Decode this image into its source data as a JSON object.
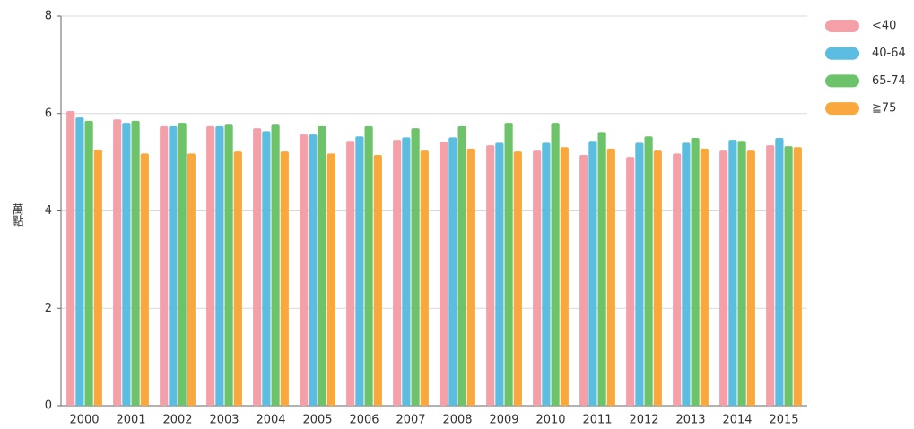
{
  "chart_data": {
    "type": "bar",
    "ylabel": "萬點",
    "categories": [
      "2000",
      "2001",
      "2002",
      "2003",
      "2004",
      "2005",
      "2006",
      "2007",
      "2008",
      "2009",
      "2010",
      "2011",
      "2012",
      "2013",
      "2014",
      "2015"
    ],
    "series": [
      {
        "name": "<40",
        "color": "#f4a0a8",
        "values": [
          6.05,
          5.88,
          5.74,
          5.74,
          5.7,
          5.57,
          5.44,
          5.46,
          5.42,
          5.35,
          5.24,
          5.15,
          5.11,
          5.18,
          5.24,
          5.35
        ]
      },
      {
        "name": "40-64",
        "color": "#5bbde0",
        "values": [
          5.92,
          5.81,
          5.74,
          5.74,
          5.64,
          5.57,
          5.53,
          5.51,
          5.51,
          5.4,
          5.4,
          5.44,
          5.4,
          5.4,
          5.46,
          5.5
        ]
      },
      {
        "name": "65-74",
        "color": "#6cc36a",
        "values": [
          5.85,
          5.85,
          5.81,
          5.77,
          5.77,
          5.74,
          5.74,
          5.7,
          5.74,
          5.81,
          5.81,
          5.62,
          5.53,
          5.5,
          5.44,
          5.33
        ]
      },
      {
        "name": "≧75",
        "color": "#f9a83e",
        "values": [
          5.26,
          5.18,
          5.18,
          5.22,
          5.22,
          5.18,
          5.15,
          5.24,
          5.28,
          5.22,
          5.31,
          5.28,
          5.24,
          5.28,
          5.24,
          5.31
        ]
      }
    ],
    "ylim": [
      0,
      8
    ],
    "yticks": [
      0,
      2,
      4,
      6,
      8
    ],
    "grid": true,
    "legend": "right"
  }
}
